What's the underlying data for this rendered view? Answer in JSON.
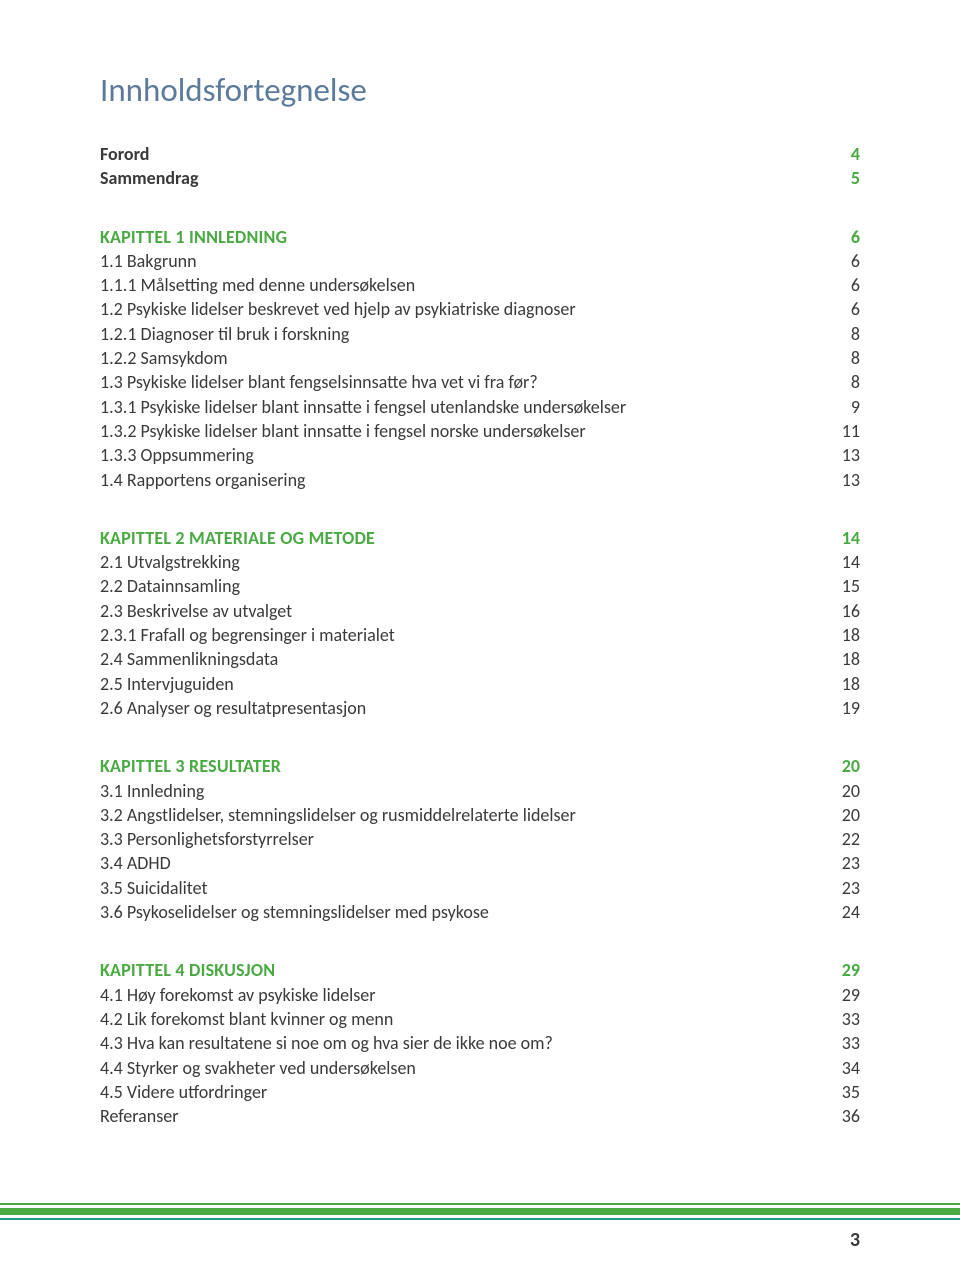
{
  "colors": {
    "title": "#5c7b9a",
    "body": "#3a3a3a",
    "accent": "#49a942",
    "bar_bottom": "#1f9b8d",
    "page_bg": "#ffffff"
  },
  "fonts": {
    "title_size_pt": 25,
    "body_size_pt": 13,
    "page_num_size_pt": 15
  },
  "title": "Innholdsfortegnelse",
  "page_number": "3",
  "sections": [
    {
      "rows": [
        {
          "label": "Forord",
          "page": "4",
          "style": "bold",
          "color": "body",
          "pcolor": "accent"
        },
        {
          "label": "Sammendrag",
          "page": "5",
          "style": "bold",
          "color": "body",
          "pcolor": "accent"
        }
      ]
    },
    {
      "rows": [
        {
          "label": "KAPITTEL 1 INNLEDNING",
          "page": "6",
          "style": "chapter",
          "color": "accent",
          "pcolor": "accent"
        },
        {
          "label": "1.1 Bakgrunn",
          "page": "6",
          "style": "plain",
          "color": "body",
          "pcolor": "body"
        },
        {
          "label": "1.1.1 Målsetting med denne undersøkelsen",
          "page": "6",
          "style": "plain",
          "color": "body",
          "pcolor": "body"
        },
        {
          "label": "1.2 Psykiske lidelser beskrevet ved hjelp av psykiatriske diagnoser",
          "page": "6",
          "style": "plain",
          "color": "body",
          "pcolor": "body"
        },
        {
          "label": "1.2.1 Diagnoser til bruk i forskning",
          "page": "8",
          "style": "plain",
          "color": "body",
          "pcolor": "body"
        },
        {
          "label": "1.2.2 Samsykdom",
          "page": "8",
          "style": "plain",
          "color": "body",
          "pcolor": "body"
        },
        {
          "label": "1.3 Psykiske lidelser blant fengselsinnsatte hva vet vi fra før?",
          "page": "8",
          "style": "plain",
          "color": "body",
          "pcolor": "body"
        },
        {
          "label": "1.3.1 Psykiske lidelser blant innsatte i fengsel utenlandske undersøkelser",
          "page": "9",
          "style": "plain",
          "color": "body",
          "pcolor": "body"
        },
        {
          "label": "1.3.2 Psykiske lidelser blant innsatte i fengsel norske undersøkelser",
          "page": "11",
          "style": "plain",
          "color": "body",
          "pcolor": "body"
        },
        {
          "label": "1.3.3 Oppsummering",
          "page": "13",
          "style": "plain",
          "color": "body",
          "pcolor": "body"
        },
        {
          "label": "1.4 Rapportens organisering",
          "page": "13",
          "style": "plain",
          "color": "body",
          "pcolor": "body"
        }
      ]
    },
    {
      "rows": [
        {
          "label": "KAPITTEL 2  MATERIALE OG METODE",
          "page": "14",
          "style": "chapter",
          "color": "accent",
          "pcolor": "accent"
        },
        {
          "label": "2.1 Utvalgstrekking",
          "page": "14",
          "style": "plain",
          "color": "body",
          "pcolor": "body"
        },
        {
          "label": "2.2 Datainnsamling",
          "page": "15",
          "style": "plain",
          "color": "body",
          "pcolor": "body"
        },
        {
          "label": "2.3 Beskrivelse av utvalget",
          "page": "16",
          "style": "plain",
          "color": "body",
          "pcolor": "body"
        },
        {
          "label": "2.3.1 Frafall og begrensinger i materialet",
          "page": "18",
          "style": "plain",
          "color": "body",
          "pcolor": "body"
        },
        {
          "label": "2.4  Sammenlikningsdata",
          "page": "18",
          "style": "plain",
          "color": "body",
          "pcolor": "body"
        },
        {
          "label": "2.5 Intervjuguiden",
          "page": "18",
          "style": "plain",
          "color": "body",
          "pcolor": "body"
        },
        {
          "label": "2.6 Analyser og resultatpresentasjon",
          "page": "19",
          "style": "plain",
          "color": "body",
          "pcolor": "body"
        }
      ]
    },
    {
      "rows": [
        {
          "label": "KAPITTEL 3 RESULTATER",
          "page": "20",
          "style": "chapter",
          "color": "accent",
          "pcolor": "accent"
        },
        {
          "label": "3.1 Innledning",
          "page": "20",
          "style": "plain",
          "color": "body",
          "pcolor": "body"
        },
        {
          "label": "3.2 Angstlidelser, stemningslidelser og rusmiddelrelaterte lidelser",
          "page": "20",
          "style": "plain",
          "color": "body",
          "pcolor": "body"
        },
        {
          "label": "3.3 Personlighetsforstyrrelser",
          "page": "22",
          "style": "plain",
          "color": "body",
          "pcolor": "body"
        },
        {
          "label": "3.4 ADHD",
          "page": "23",
          "style": "plain",
          "color": "body",
          "pcolor": "body"
        },
        {
          "label": "3.5 Suicidalitet",
          "page": "23",
          "style": "plain",
          "color": "body",
          "pcolor": "body"
        },
        {
          "label": "3.6 Psykoselidelser og stemningslidelser med psykose",
          "page": "24",
          "style": "plain",
          "color": "body",
          "pcolor": "body"
        }
      ]
    },
    {
      "rows": [
        {
          "label": "KAPITTEL 4 DISKUSJON",
          "page": "29",
          "style": "chapter",
          "color": "accent",
          "pcolor": "accent"
        },
        {
          "label": "4.1 Høy forekomst av psykiske lidelser",
          "page": "29",
          "style": "plain",
          "color": "body",
          "pcolor": "body"
        },
        {
          "label": "4.2 Lik forekomst blant kvinner og menn",
          "page": "33",
          "style": "plain",
          "color": "body",
          "pcolor": "body"
        },
        {
          "label": "4.3 Hva kan resultatene si noe om og hva sier de ikke noe om?",
          "page": "33",
          "style": "plain",
          "color": "body",
          "pcolor": "body"
        },
        {
          "label": "4.4 Styrker og svakheter ved undersøkelsen",
          "page": "34",
          "style": "plain",
          "color": "body",
          "pcolor": "body"
        },
        {
          "label": "4.5 Videre utfordringer",
          "page": "35",
          "style": "plain",
          "color": "body",
          "pcolor": "body"
        },
        {
          "label": "Referanser",
          "page": "36",
          "style": "plain",
          "color": "body",
          "pcolor": "body"
        }
      ]
    }
  ]
}
